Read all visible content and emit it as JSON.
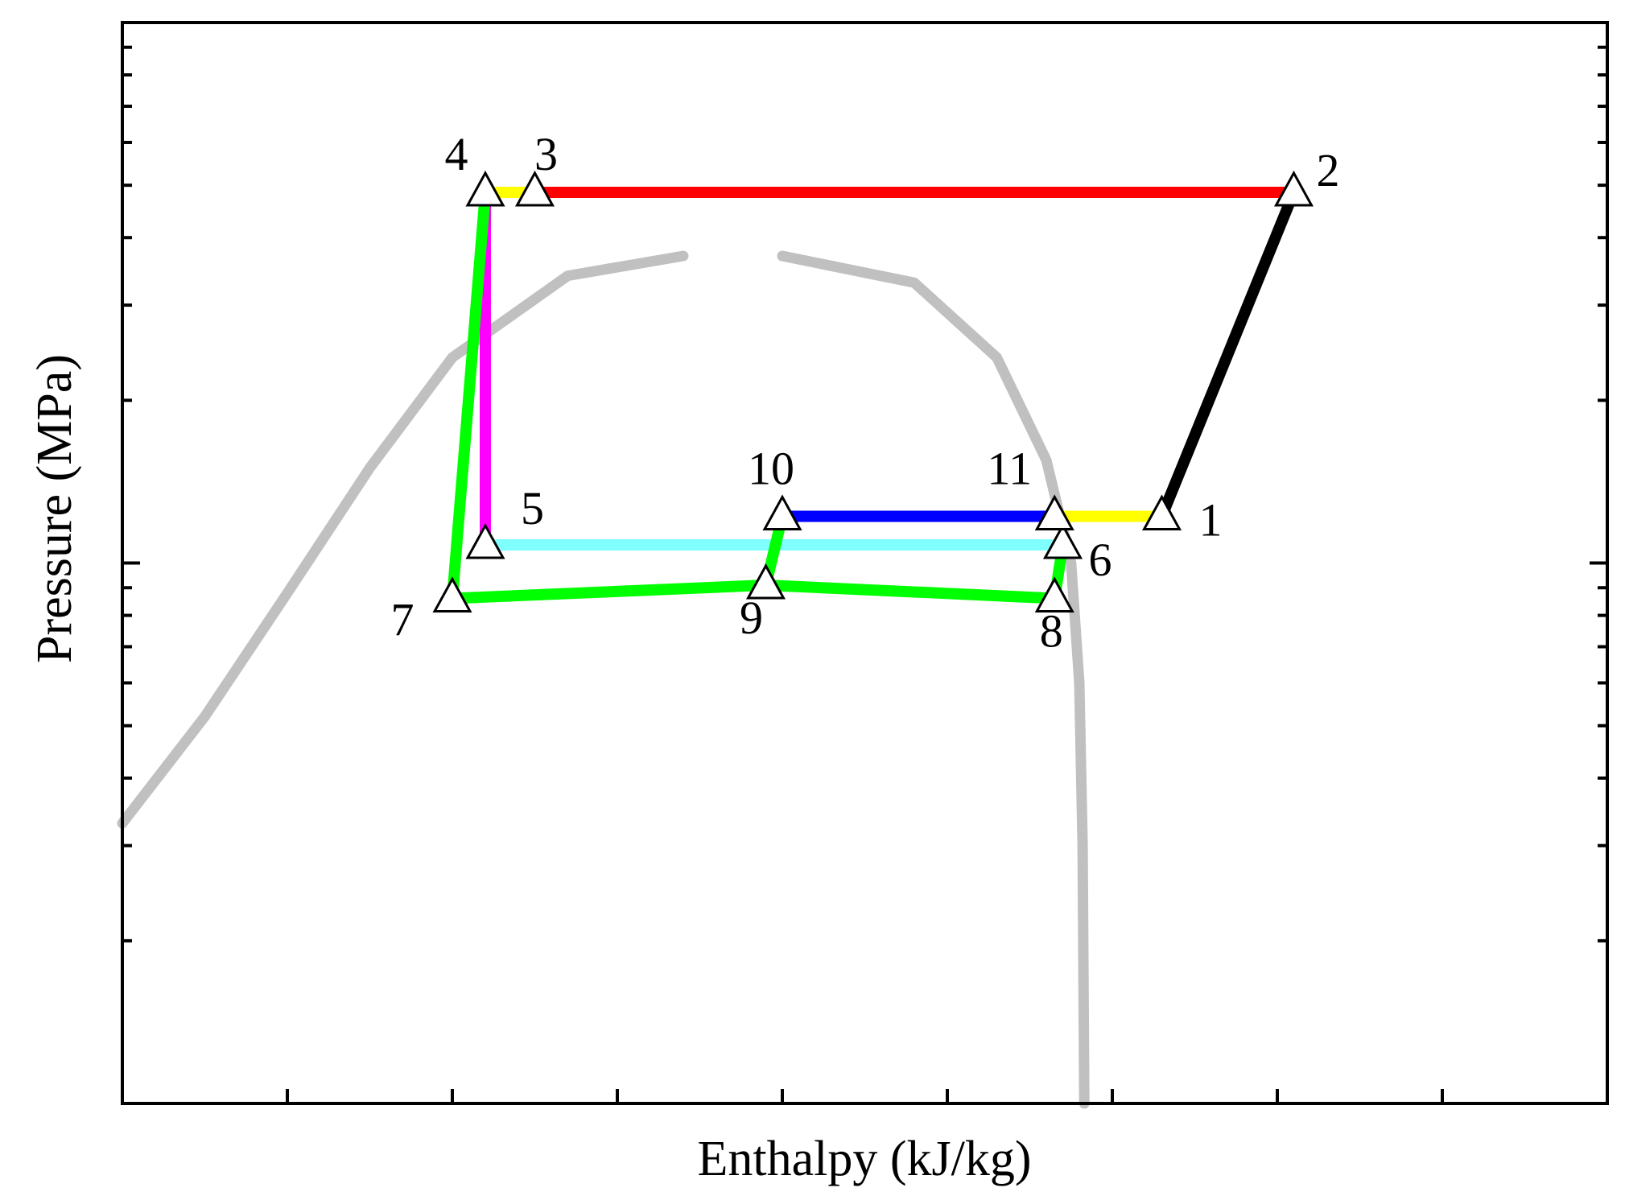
{
  "chart_data": {
    "type": "line",
    "title": "",
    "xlabel": "Enthalpy (kJ/kg)",
    "ylabel": "Pressure (MPa)",
    "x_scale": "linear",
    "y_scale": "log",
    "xlim": [
      0,
      9
    ],
    "ylim": [
      0.1,
      10
    ],
    "tick_labels_shown": false,
    "grid": false,
    "legend": "none",
    "saturation_dome": {
      "color": "#c0c0c0",
      "liquid": [
        [
          0.0,
          0.33
        ],
        [
          0.5,
          0.52
        ],
        [
          1.0,
          0.88
        ],
        [
          1.5,
          1.5
        ],
        [
          2.0,
          2.4
        ],
        [
          2.7,
          3.4
        ],
        [
          3.4,
          3.7
        ]
      ],
      "vapor": [
        [
          4.0,
          3.7
        ],
        [
          4.8,
          3.3
        ],
        [
          5.3,
          2.4
        ],
        [
          5.6,
          1.55
        ],
        [
          5.75,
          1.0
        ],
        [
          5.8,
          0.6
        ],
        [
          5.82,
          0.3
        ],
        [
          5.83,
          0.1
        ]
      ]
    },
    "points": [
      {
        "label": "1",
        "x": 6.3,
        "y": 1.22
      },
      {
        "label": "2",
        "x": 7.1,
        "y": 4.85
      },
      {
        "label": "3",
        "x": 2.5,
        "y": 4.85
      },
      {
        "label": "4",
        "x": 2.2,
        "y": 4.85
      },
      {
        "label": "5",
        "x": 2.2,
        "y": 1.08
      },
      {
        "label": "6",
        "x": 5.7,
        "y": 1.08
      },
      {
        "label": "7",
        "x": 2.0,
        "y": 0.86
      },
      {
        "label": "8",
        "x": 5.65,
        "y": 0.86
      },
      {
        "label": "9",
        "x": 3.9,
        "y": 0.91
      },
      {
        "label": "10",
        "x": 4.0,
        "y": 1.22
      },
      {
        "label": "11",
        "x": 5.65,
        "y": 1.22
      }
    ],
    "segments": [
      {
        "from": "1",
        "to": "2",
        "color": "#000000"
      },
      {
        "from": "2",
        "to": "3",
        "color": "#ff0000"
      },
      {
        "from": "3",
        "to": "4",
        "color": "#ffff00"
      },
      {
        "from": "4",
        "to": "5",
        "color": "#ff00ff"
      },
      {
        "from": "5",
        "to": "6",
        "color": "#80ffff"
      },
      {
        "from": "4",
        "to": "7",
        "color": "#00ff00"
      },
      {
        "from": "7",
        "to": "9",
        "color": "#00ff00"
      },
      {
        "from": "9",
        "to": "8",
        "color": "#00ff00"
      },
      {
        "from": "8",
        "to": "6",
        "color": "#00ff00"
      },
      {
        "from": "9",
        "to": "10",
        "color": "#00ff00"
      },
      {
        "from": "10",
        "to": "11",
        "color": "#0000ff"
      },
      {
        "from": "11",
        "to": "1",
        "color": "#ffff00"
      }
    ]
  }
}
